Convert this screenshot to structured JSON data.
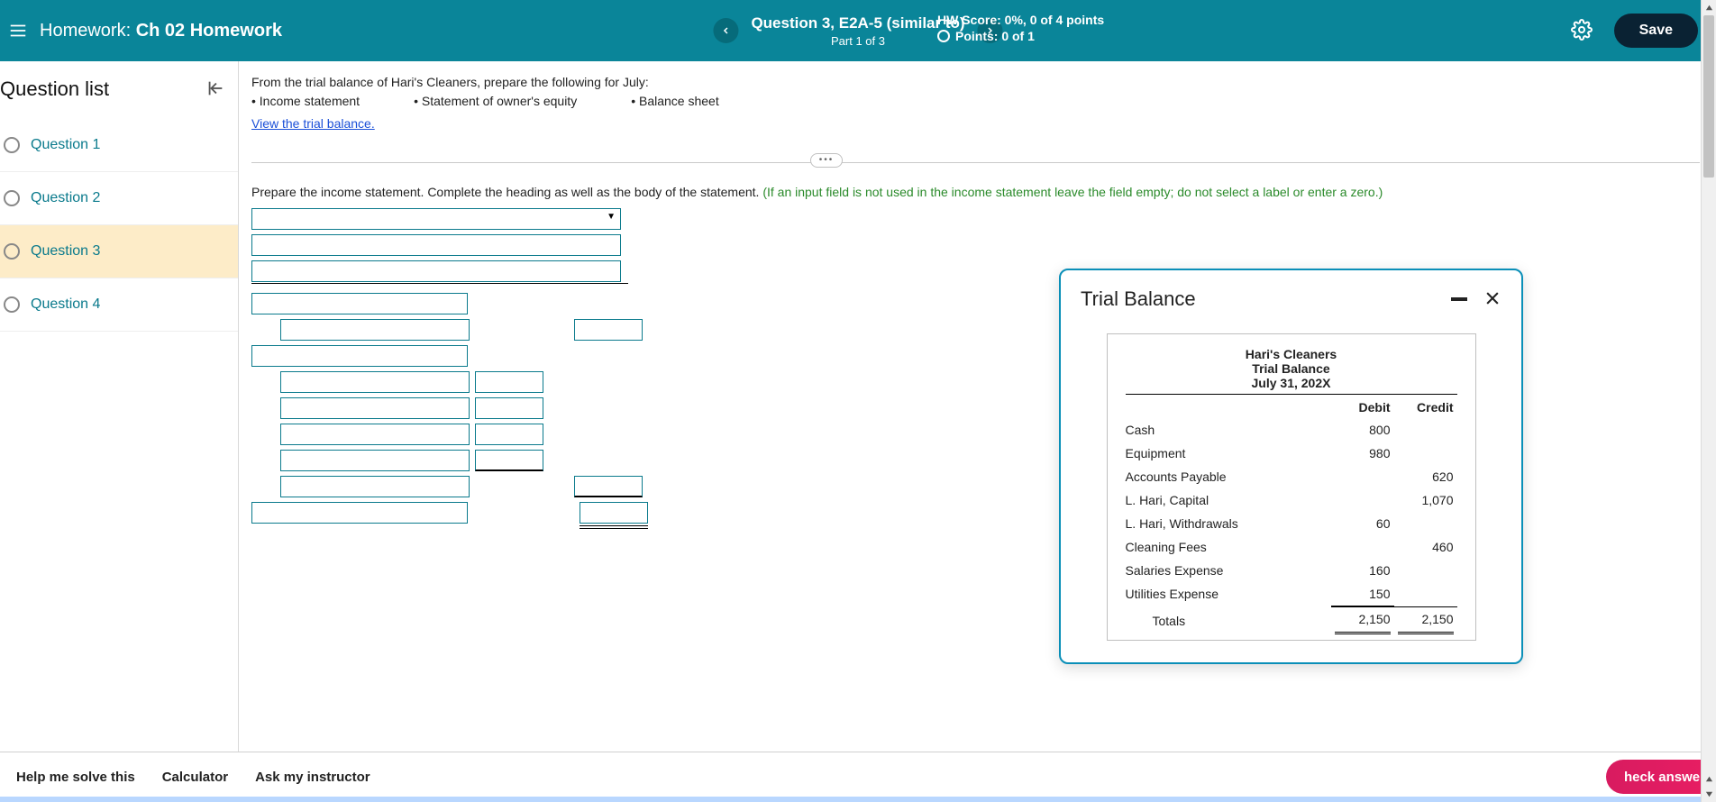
{
  "header": {
    "homework_prefix": "Homework: ",
    "homework_name": "Ch 02 Homework",
    "question_title": "Question 3, E2A-5 (similar to)",
    "part_label": "Part 1 of 3",
    "score_line": "HW Score: 0%, 0 of 4 points",
    "points_line": "Points: 0 of 1",
    "save_label": "Save"
  },
  "sidebar": {
    "title": "Question list",
    "items": [
      {
        "label": "Question 1",
        "active": false
      },
      {
        "label": "Question 2",
        "active": false
      },
      {
        "label": "Question 3",
        "active": true
      },
      {
        "label": "Question 4",
        "active": false
      }
    ]
  },
  "instructions": {
    "lead": "From the trial balance of Hari's Cleaners, prepare the following for July:",
    "bullets": [
      "Income statement",
      "Statement of owner's equity",
      "Balance sheet"
    ],
    "view_link": "View the trial balance."
  },
  "prep": {
    "text": "Prepare the income statement. Complete the heading as well as the body of the statement. ",
    "hint": "(If an input field is not used in the income statement leave the field empty; do not select a label or enter a zero.)"
  },
  "popup": {
    "title": "Trial Balance",
    "company": "Hari's Cleaners",
    "report": "Trial Balance",
    "date": "July 31, 202X",
    "col_debit": "Debit",
    "col_credit": "Credit",
    "rows": [
      {
        "acct": "Cash",
        "debit": "800",
        "credit": ""
      },
      {
        "acct": "Equipment",
        "debit": "980",
        "credit": ""
      },
      {
        "acct": "Accounts Payable",
        "debit": "",
        "credit": "620"
      },
      {
        "acct": "L. Hari, Capital",
        "debit": "",
        "credit": "1,070"
      },
      {
        "acct": "L. Hari, Withdrawals",
        "debit": "60",
        "credit": ""
      },
      {
        "acct": "Cleaning Fees",
        "debit": "",
        "credit": "460"
      },
      {
        "acct": "Salaries Expense",
        "debit": "160",
        "credit": ""
      },
      {
        "acct": "Utilities Expense",
        "debit": "150",
        "credit": ""
      }
    ],
    "totals_label": "Totals",
    "total_debit": "2,150",
    "total_credit": "2,150"
  },
  "helpbar": {
    "solve": "Help me solve this",
    "calc": "Calculator",
    "ask": "Ask my instructor",
    "check": "heck answer"
  },
  "colors": {
    "teal": "#0a8599",
    "teal_dark": "#066b7a",
    "link": "#0a7a8c",
    "active_bg": "#fdecc8",
    "hint_green": "#2a8a2a",
    "popup_border": "#0a8fb8",
    "check_pink": "#e91e63"
  }
}
